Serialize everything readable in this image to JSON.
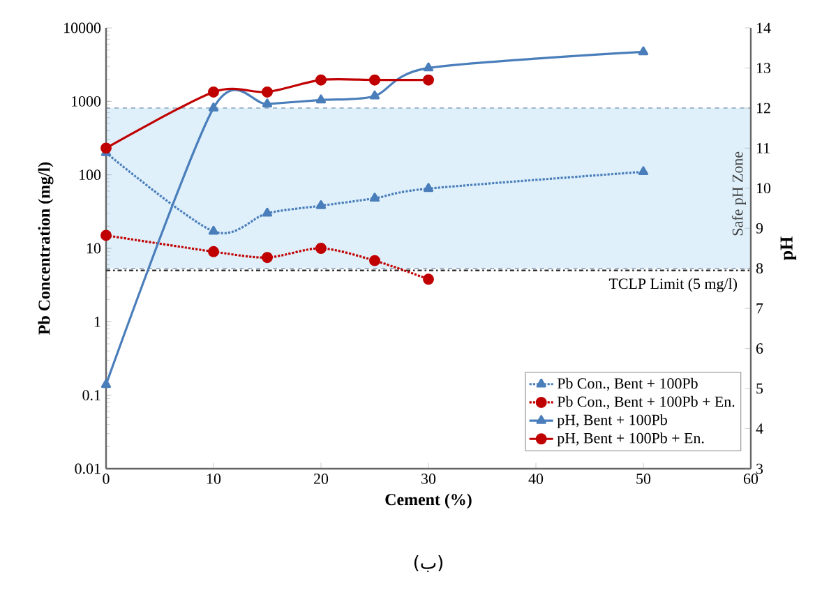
{
  "chart_data": {
    "type": "line",
    "xlabel": "Cement (%)",
    "ylabel": "Pb Concentration (mg/l)",
    "y2label": "pH",
    "x": [
      0,
      10,
      15,
      20,
      25,
      30,
      50
    ],
    "series": [
      {
        "name": "Pb Con., Bent + 100Pb",
        "color": "#4a7ebb",
        "marker": "triangle",
        "line_style": "dotted",
        "values": [
          200,
          17,
          30,
          38,
          48,
          65,
          110
        ]
      },
      {
        "name": "Pb Con., Bent + 100Pb + En.",
        "color": "#c00000",
        "marker": "circle",
        "line_style": "dotted",
        "x": [
          0,
          10,
          15,
          20,
          25,
          30
        ],
        "values": [
          15,
          9,
          7.5,
          10,
          6.8,
          3.8
        ]
      },
      {
        "name": "pH, Bent + 100Pb",
        "color": "#4a7ebb",
        "marker": "triangle",
        "line_style": "solid",
        "axis": "y2",
        "values": [
          5.1,
          12.0,
          12.1,
          12.2,
          12.3,
          13.0,
          13.4
        ]
      },
      {
        "name": "pH, Bent + 100Pb + En.",
        "color": "#c00000",
        "marker": "circle",
        "line_style": "solid",
        "axis": "y2",
        "x": [
          0,
          10,
          15,
          20,
          25,
          30
        ],
        "values": [
          11.0,
          12.4,
          12.4,
          12.7,
          12.7,
          12.7
        ]
      }
    ],
    "xlim": [
      0,
      60
    ],
    "xticks": [
      0,
      10,
      20,
      30,
      40,
      50,
      60
    ],
    "log": "y",
    "ylim": [
      0.01,
      10000
    ],
    "yticks": [
      0.01,
      0.1,
      1,
      10,
      100,
      1000,
      10000
    ],
    "y2lim": [
      3,
      14
    ],
    "y2ticks": [
      3,
      4,
      5,
      6,
      7,
      8,
      9,
      10,
      11,
      12,
      13,
      14
    ],
    "bands": [
      {
        "axis": "y2",
        "from": 8,
        "to": 12,
        "label": "Safe pH Zone",
        "color": "#dff0fb"
      }
    ],
    "ref_lines": [
      {
        "axis": "y",
        "value": 5,
        "label": "TCLP Limit (5 mg/l)",
        "color": "#333333",
        "line_style": "dashdot"
      }
    ],
    "legend": "bottom right",
    "annotations": [
      "(ب)"
    ]
  }
}
